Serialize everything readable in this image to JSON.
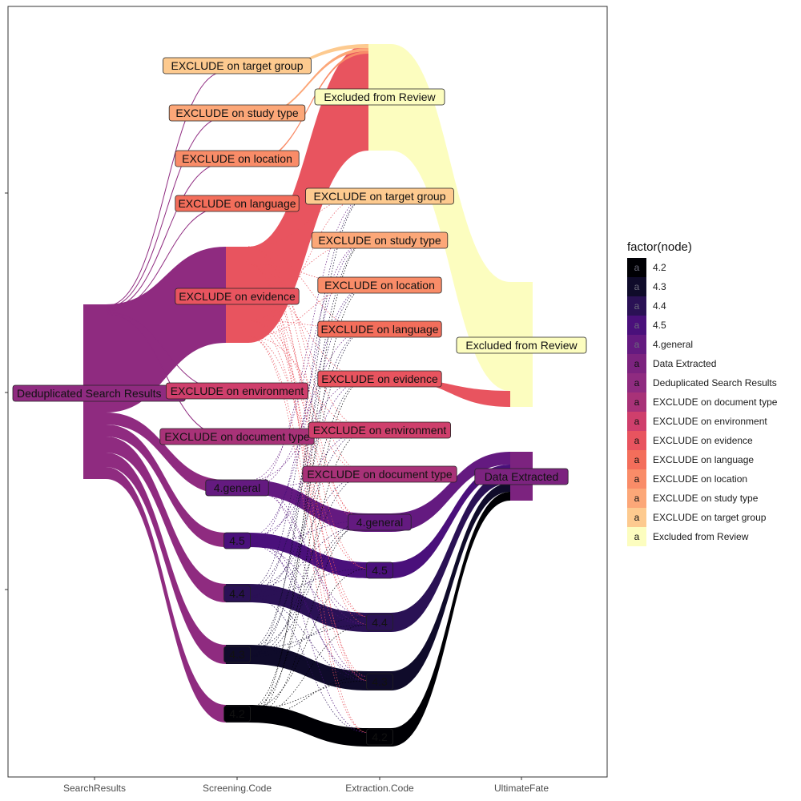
{
  "chart_data": {
    "type": "alluvial",
    "title": "",
    "xlabel": "",
    "ylabel": "",
    "legend": {
      "title": "factor(node)",
      "placement": "right",
      "entries": [
        {
          "label": "4.2",
          "color": "#000004"
        },
        {
          "label": "4.3",
          "color": "#0f0b2a"
        },
        {
          "label": "4.4",
          "color": "#2a1155"
        },
        {
          "label": "4.5",
          "color": "#4a107b"
        },
        {
          "label": "4.general",
          "color": "#641a80"
        },
        {
          "label": "Data Extracted",
          "color": "#7c237f"
        },
        {
          "label": "Deduplicated Search Results",
          "color": "#8f2b80"
        },
        {
          "label": "EXCLUDE on document type",
          "color": "#a83278"
        },
        {
          "label": "EXCLUDE on environment",
          "color": "#cf3f6c"
        },
        {
          "label": "EXCLUDE on evidence",
          "color": "#e8545f"
        },
        {
          "label": "EXCLUDE on language",
          "color": "#f36e5b"
        },
        {
          "label": "EXCLUDE on location",
          "color": "#f98c68"
        },
        {
          "label": "EXCLUDE on study type",
          "color": "#fca778"
        },
        {
          "label": "EXCLUDE on target group",
          "color": "#fdca8f"
        },
        {
          "label": "Excluded from Review",
          "color": "#fcfdbf"
        }
      ]
    },
    "x_categories": [
      "SearchResults",
      "Screening.Code",
      "Extraction.Code",
      "UltimateFate"
    ],
    "legend_key_glyph": "a",
    "stages": [
      {
        "stage": "SearchResults",
        "nodes": [
          {
            "name": "Deduplicated Search Results",
            "value": 1000
          }
        ]
      },
      {
        "stage": "Screening.Code",
        "nodes": [
          {
            "name": "EXCLUDE on target group",
            "value": 3
          },
          {
            "name": "EXCLUDE on study type",
            "value": 3
          },
          {
            "name": "EXCLUDE on location",
            "value": 3
          },
          {
            "name": "EXCLUDE on language",
            "value": 3
          },
          {
            "name": "EXCLUDE on evidence",
            "value": 560
          },
          {
            "name": "EXCLUDE on environment",
            "value": 3
          },
          {
            "name": "EXCLUDE on document type",
            "value": 3
          },
          {
            "name": "4.general",
            "value": 80
          },
          {
            "name": "4.5",
            "value": 60
          },
          {
            "name": "4.4",
            "value": 80
          },
          {
            "name": "4.3",
            "value": 100
          },
          {
            "name": "4.2",
            "value": 100
          }
        ]
      },
      {
        "stage": "Extraction.Code",
        "nodes": [
          {
            "name": "Excluded from Review",
            "value": 620
          },
          {
            "name": "EXCLUDE on target group",
            "value": 3
          },
          {
            "name": "EXCLUDE on study type",
            "value": 3
          },
          {
            "name": "EXCLUDE on location",
            "value": 3
          },
          {
            "name": "EXCLUDE on language",
            "value": 3
          },
          {
            "name": "EXCLUDE on evidence",
            "value": 3
          },
          {
            "name": "EXCLUDE on environment",
            "value": 3
          },
          {
            "name": "EXCLUDE on document type",
            "value": 3
          },
          {
            "name": "4.general",
            "value": 90
          },
          {
            "name": "4.5",
            "value": 70
          },
          {
            "name": "4.4",
            "value": 90
          },
          {
            "name": "4.3",
            "value": 100
          },
          {
            "name": "4.2",
            "value": 100
          }
        ]
      },
      {
        "stage": "UltimateFate",
        "nodes": [
          {
            "name": "Excluded from Review",
            "value": 700
          },
          {
            "name": "Data Extracted",
            "value": 300
          }
        ]
      }
    ],
    "y_ticks": [
      "",
      "",
      ""
    ],
    "grid": false
  }
}
